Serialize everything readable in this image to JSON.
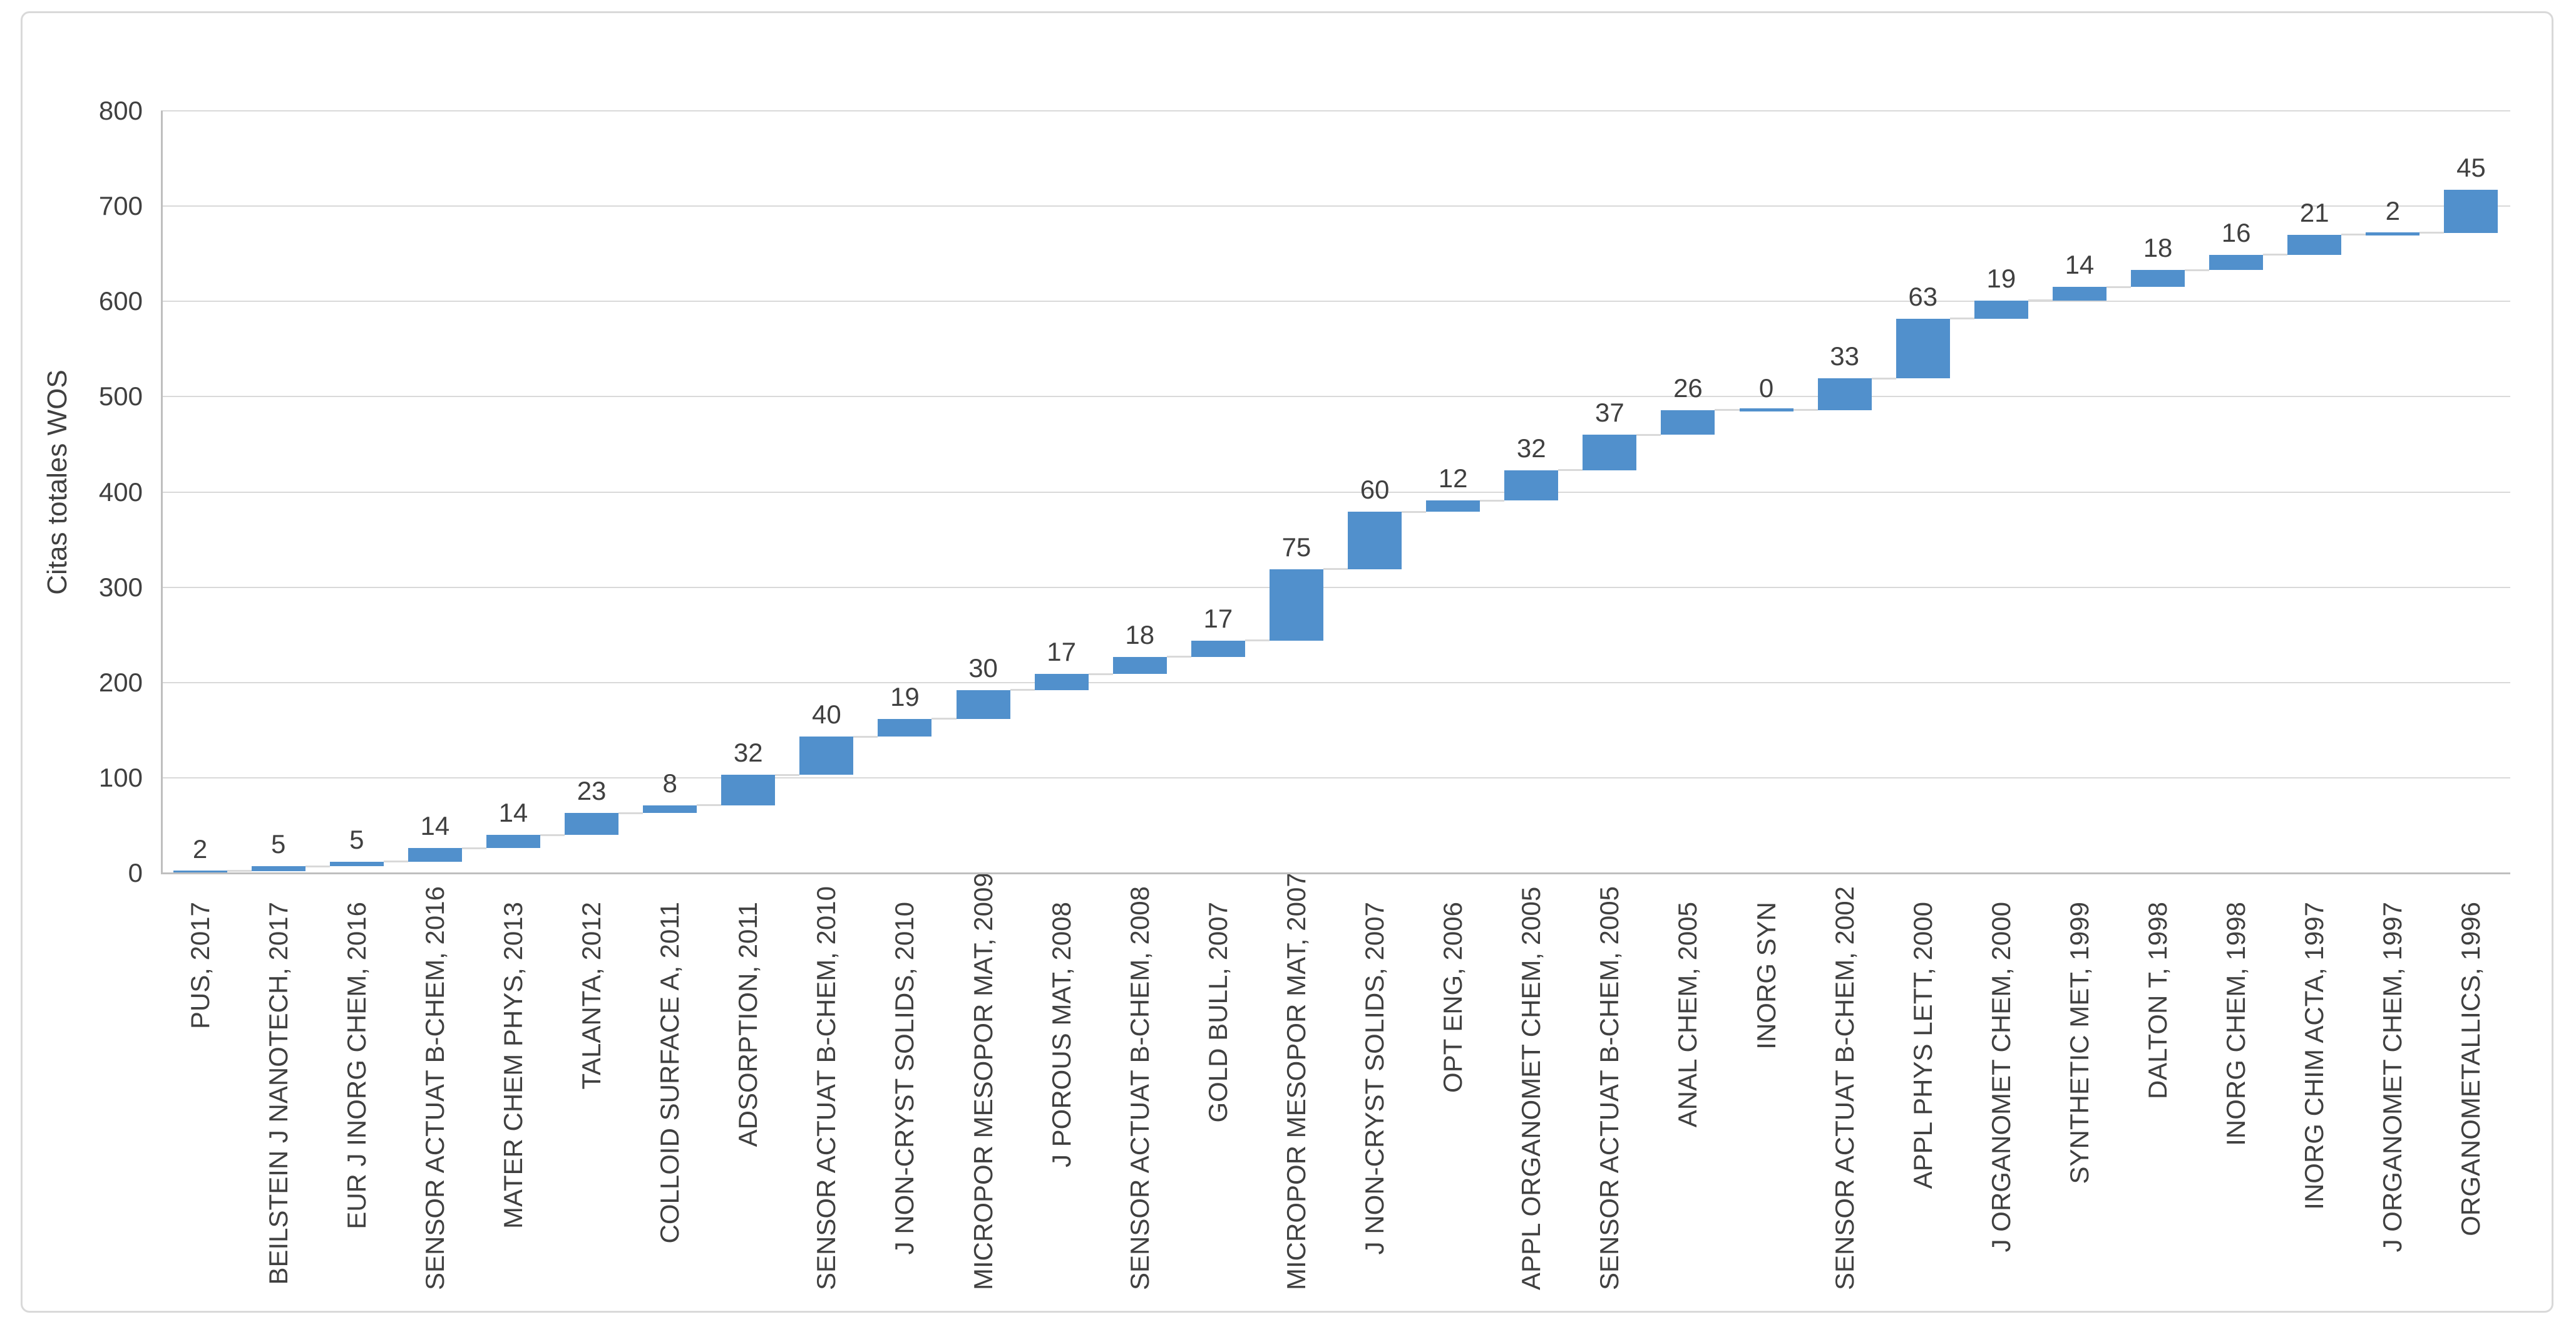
{
  "chart": {
    "background": "#ffffff",
    "border_color": "#d9d9d9",
    "bar_color": "#5190cc",
    "gridline_color": "#d9d9d9",
    "axis_color": "#bfbfbf",
    "connector_color": "#d9d9d9",
    "text_color": "#404040"
  },
  "chart_data": {
    "type": "bar",
    "subtype": "waterfall-cumulative",
    "title": "",
    "xlabel": "",
    "ylabel": "Citas totales WOS",
    "ylim": [
      0,
      800
    ],
    "ytick_step": 100,
    "yticks": [
      0,
      100,
      200,
      300,
      400,
      500,
      600,
      700,
      800
    ],
    "grid": true,
    "legend": false,
    "categories": [
      "PUS, 2017",
      "BEILSTEIN J NANOTECH, 2017",
      "EUR J INORG CHEM, 2016",
      "SENSOR ACTUAT B-CHEM, 2016",
      "MATER CHEM PHYS, 2013",
      "TALANTA, 2012",
      "COLLOID SURFACE A, 2011",
      "ADSORPTION, 2011",
      "SENSOR ACTUAT B-CHEM, 2010",
      "J NON-CRYST SOLIDS, 2010",
      "MICROPOR MESOPOR MAT, 2009",
      "J POROUS MAT, 2008",
      "SENSOR ACTUAT B-CHEM, 2008",
      "GOLD BULL, 2007",
      "MICROPOR MESOPOR MAT, 2007",
      "J NON-CRYST SOLIDS, 2007",
      "OPT ENG, 2006",
      "APPL ORGANOMET CHEM, 2005",
      "SENSOR ACTUAT B-CHEM, 2005",
      "ANAL CHEM, 2005",
      "INORG SYN",
      "SENSOR ACTUAT B-CHEM, 2002",
      "APPL PHYS LETT, 2000",
      "J ORGANOMET CHEM, 2000",
      "SYNTHETIC MET, 1999",
      "DALTON T, 1998",
      "INORG CHEM, 1998",
      "INORG CHIM ACTA, 1997",
      "J ORGANOMET CHEM, 1997",
      "ORGANOMETALLICS, 1996"
    ],
    "values": [
      2,
      5,
      5,
      14,
      14,
      23,
      8,
      32,
      40,
      19,
      30,
      17,
      18,
      17,
      75,
      60,
      12,
      32,
      37,
      26,
      0,
      33,
      63,
      19,
      14,
      18,
      16,
      21,
      2,
      45
    ],
    "cumulative_totals": [
      2,
      7,
      12,
      26,
      40,
      63,
      71,
      103,
      143,
      162,
      192,
      209,
      227,
      244,
      319,
      379,
      391,
      423,
      460,
      486,
      486,
      519,
      582,
      601,
      615,
      633,
      649,
      670,
      672,
      717
    ]
  }
}
